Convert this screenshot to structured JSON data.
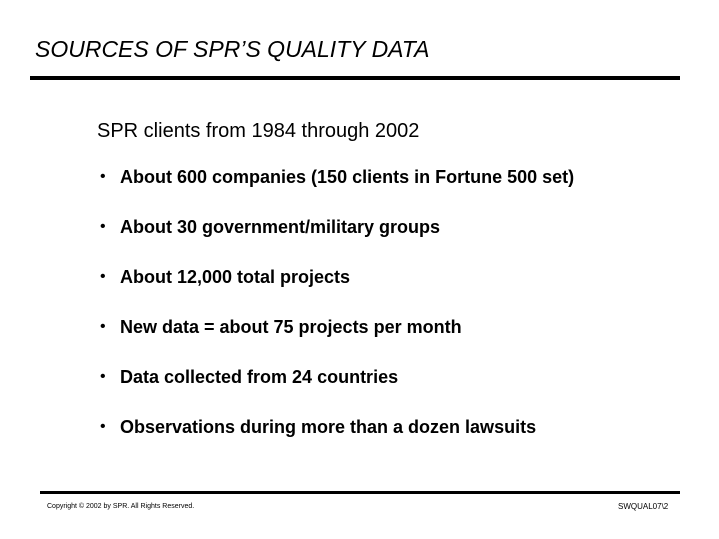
{
  "slide": {
    "title": "SOURCES OF SPR’S QUALITY DATA",
    "subheading": "SPR clients from 1984 through 2002",
    "bullet_symbol": "•",
    "bullets": [
      "About 600 companies (150 clients in Fortune 500 set)",
      "About 30 government/military groups",
      "About 12,000 total projects",
      "New data =  about 75 projects per month",
      "Data collected from 24 countries",
      "Observations during more than a dozen lawsuits"
    ]
  },
  "footer": {
    "copyright": "Copyright © 2002 by SPR.  All Rights Reserved.",
    "slide_code": "SWQUAL07\\2"
  }
}
